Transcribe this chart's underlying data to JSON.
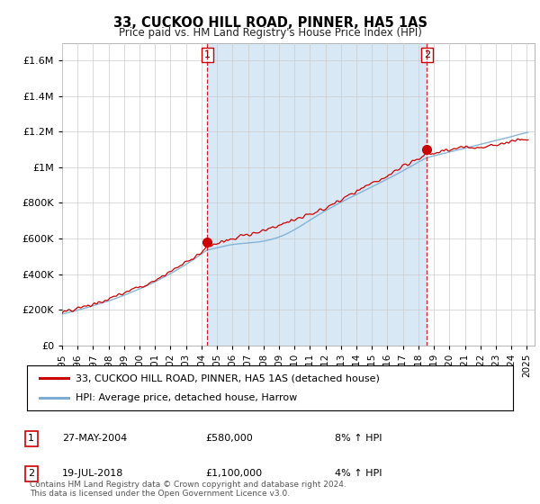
{
  "title": "33, CUCKOO HILL ROAD, PINNER, HA5 1AS",
  "subtitle": "Price paid vs. HM Land Registry's House Price Index (HPI)",
  "ylim": [
    0,
    1700000
  ],
  "yticks": [
    0,
    200000,
    400000,
    600000,
    800000,
    1000000,
    1200000,
    1400000,
    1600000
  ],
  "ytick_labels": [
    "£0",
    "£200K",
    "£400K",
    "£600K",
    "£800K",
    "£1M",
    "£1.2M",
    "£1.4M",
    "£1.6M"
  ],
  "xlim_start": 1995.0,
  "xlim_end": 2025.5,
  "xtick_years": [
    1995,
    1996,
    1997,
    1998,
    1999,
    2000,
    2001,
    2002,
    2003,
    2004,
    2005,
    2006,
    2007,
    2008,
    2009,
    2010,
    2011,
    2012,
    2013,
    2014,
    2015,
    2016,
    2017,
    2018,
    2019,
    2020,
    2021,
    2022,
    2023,
    2024,
    2025
  ],
  "sale1_x": 2004.38,
  "sale1_y": 580000,
  "sale2_x": 2018.54,
  "sale2_y": 1100000,
  "red_line_color": "#cc0000",
  "blue_line_color": "#7badd4",
  "fill_color": "#d8e8f5",
  "vline_color": "#cc0000",
  "dot_color": "#cc0000",
  "background_color": "#ffffff",
  "grid_color": "#cccccc",
  "legend_label_red": "33, CUCKOO HILL ROAD, PINNER, HA5 1AS (detached house)",
  "legend_label_blue": "HPI: Average price, detached house, Harrow",
  "note1_date": "27-MAY-2004",
  "note1_price": "£580,000",
  "note1_hpi": "8% ↑ HPI",
  "note2_date": "19-JUL-2018",
  "note2_price": "£1,100,000",
  "note2_hpi": "4% ↑ HPI",
  "copyright": "Contains HM Land Registry data © Crown copyright and database right 2024.\nThis data is licensed under the Open Government Licence v3.0."
}
